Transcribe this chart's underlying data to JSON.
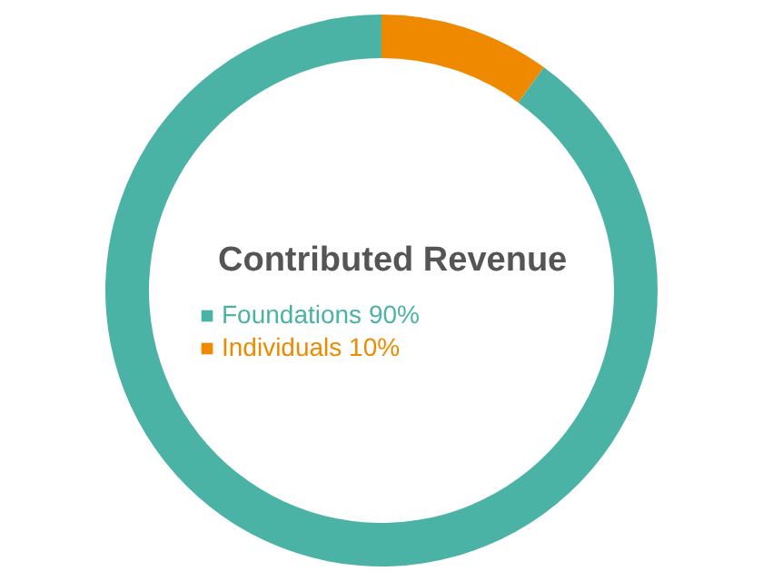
{
  "chart_data": {
    "type": "donut",
    "title": "Contributed Revenue",
    "categories": [
      "Foundations",
      "Individuals"
    ],
    "values": [
      90,
      10
    ],
    "value_labels": [
      "90%",
      "10%"
    ],
    "colors": [
      "#4ab3a5",
      "#ef8a00"
    ],
    "legend": "center"
  }
}
